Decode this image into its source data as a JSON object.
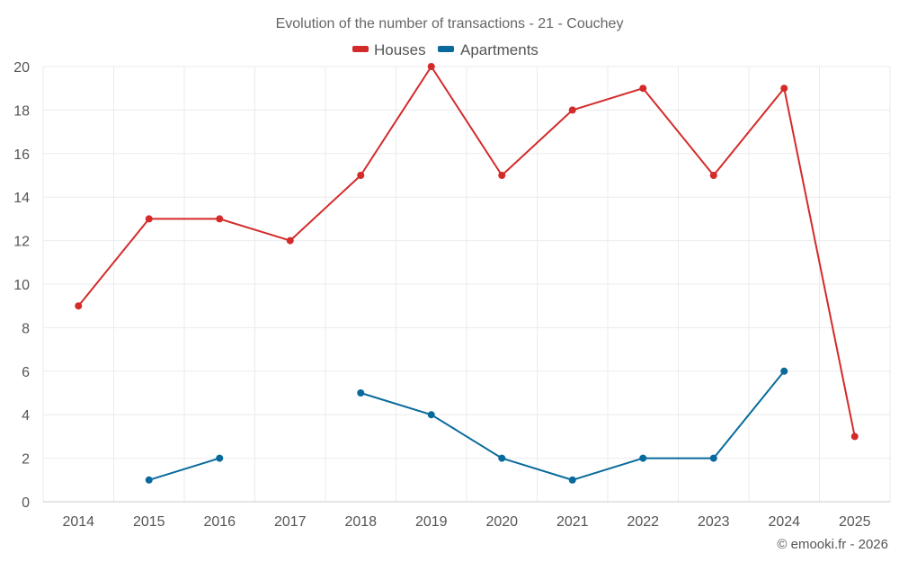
{
  "chart_data": {
    "type": "line",
    "title": "Evolution of the number of transactions - 21 - Couchey",
    "categories": [
      "2014",
      "2015",
      "2016",
      "2017",
      "2018",
      "2019",
      "2020",
      "2021",
      "2022",
      "2023",
      "2024",
      "2025"
    ],
    "ylim": [
      0,
      20
    ],
    "yticks": [
      0,
      2,
      4,
      6,
      8,
      10,
      12,
      14,
      16,
      18,
      20
    ],
    "grid": true,
    "legend_position": "top-center",
    "series": [
      {
        "name": "Houses",
        "color": "#d42a2a",
        "values": [
          9,
          13,
          13,
          12,
          15,
          20,
          15,
          18,
          19,
          15,
          19,
          3
        ]
      },
      {
        "name": "Apartments",
        "color": "#086a9c",
        "values": [
          null,
          1,
          2,
          null,
          5,
          4,
          2,
          1,
          2,
          2,
          6,
          null
        ]
      }
    ]
  },
  "credit": "© emooki.fr - 2026"
}
